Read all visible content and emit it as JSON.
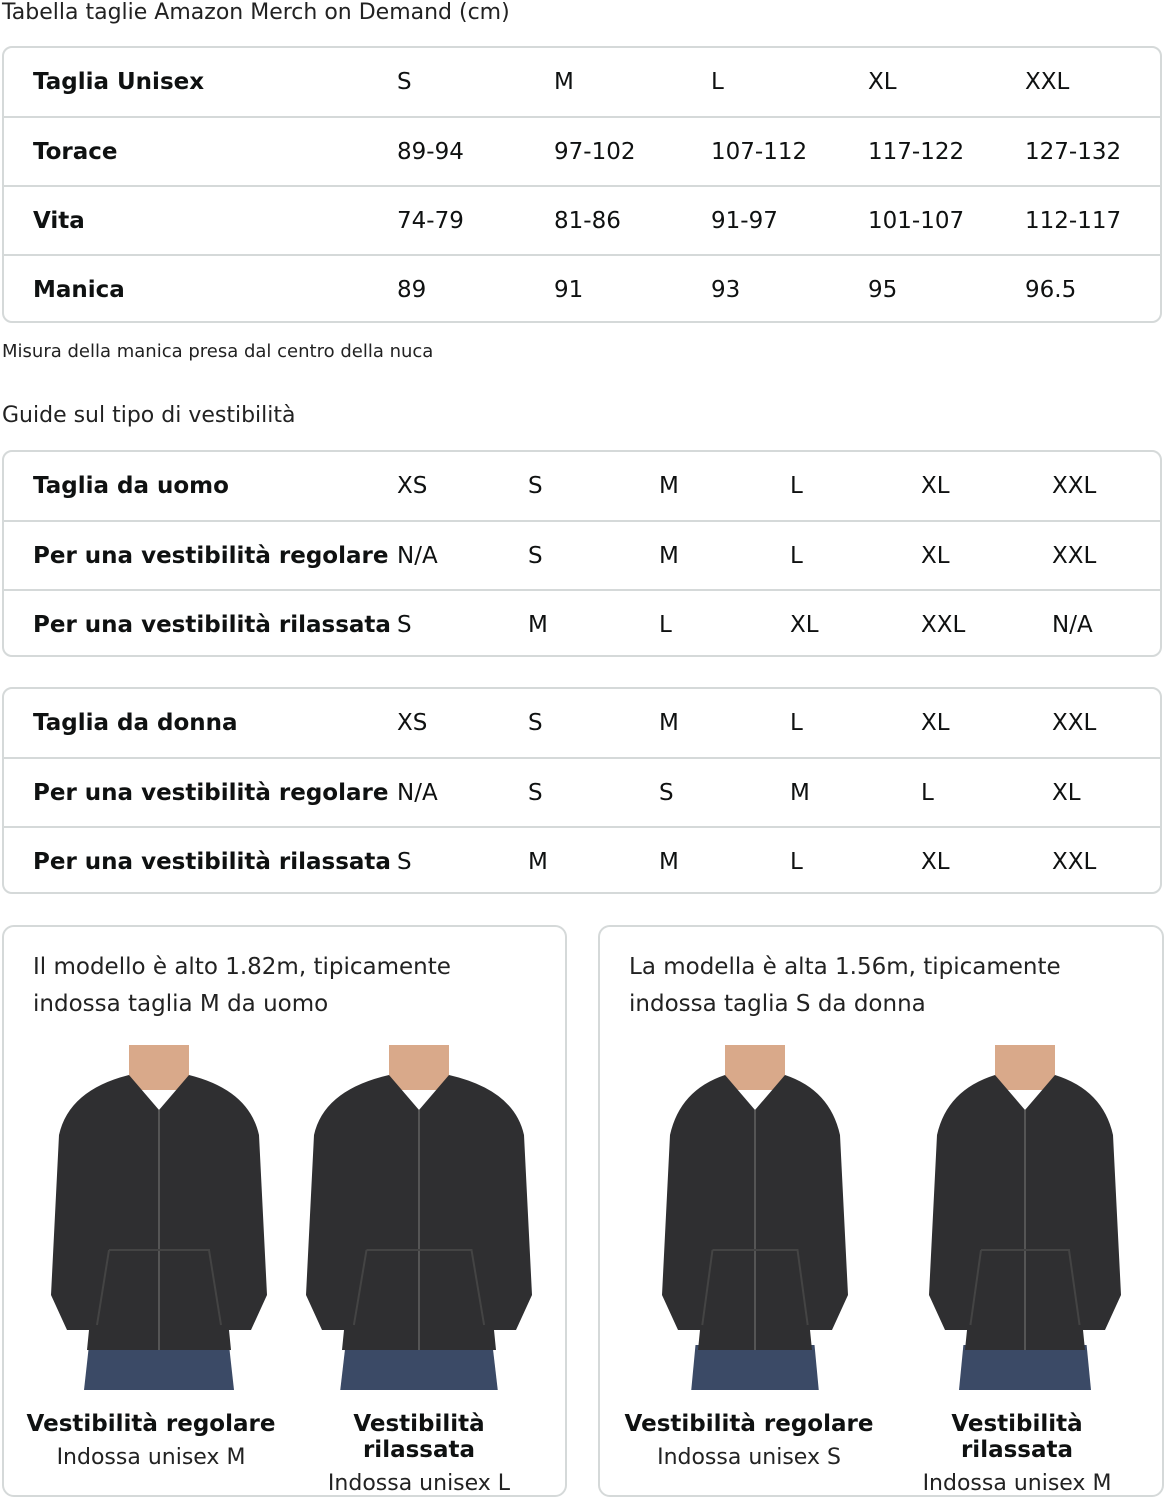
{
  "title": "Tabella taglie Amazon Merch on Demand (cm)",
  "unisex_table": {
    "rows": [
      {
        "label": "Taglia Unisex",
        "values": [
          "S",
          "M",
          "L",
          "XL",
          "XXL"
        ]
      },
      {
        "label": "Torace",
        "values": [
          "89-94",
          "97-102",
          "107-112",
          "117-122",
          "127-132"
        ]
      },
      {
        "label": "Vita",
        "values": [
          "74-79",
          "81-86",
          "91-97",
          "101-107",
          "112-117"
        ]
      },
      {
        "label": "Manica",
        "values": [
          "89",
          "91",
          "93",
          "95",
          "96.5"
        ]
      }
    ]
  },
  "footnote": "Misura della manica presa dal centro della nuca",
  "fit_guide_title": "Guide sul tipo di vestibilità",
  "men_table": {
    "rows": [
      {
        "label": "Taglia da uomo",
        "values": [
          "XS",
          "S",
          "M",
          "L",
          "XL",
          "XXL"
        ]
      },
      {
        "label": "Per una vestibilità regolare",
        "values": [
          "N/A",
          "S",
          "M",
          "L",
          "XL",
          "XXL"
        ]
      },
      {
        "label": "Per una vestibilità rilassata",
        "values": [
          "S",
          "M",
          "L",
          "XL",
          "XXL",
          "N/A"
        ]
      }
    ]
  },
  "women_table": {
    "rows": [
      {
        "label": "Taglia da donna",
        "values": [
          "XS",
          "S",
          "M",
          "L",
          "XL",
          "XXL"
        ]
      },
      {
        "label": "Per una vestibilità regolare",
        "values": [
          "N/A",
          "S",
          "S",
          "M",
          "L",
          "XL"
        ]
      },
      {
        "label": "Per una vestibilità rilassata",
        "values": [
          "S",
          "M",
          "M",
          "L",
          "XL",
          "XXL"
        ]
      }
    ]
  },
  "cards": [
    {
      "text": "Il modello è alto 1.82m, tipicamente indossa taglia M da uomo",
      "figures": [
        {
          "title": "Vestibilità regolare",
          "sub": "Indossa unisex M"
        },
        {
          "title": "Vestibilità rilassata",
          "sub": "Indossa unisex L"
        }
      ]
    },
    {
      "text": "La modella è alta 1.56m, tipicamente indossa taglia S da donna",
      "figures": [
        {
          "title": "Vestibilità regolare",
          "sub": "Indossa unisex S"
        },
        {
          "title": "Vestibilità rilassata",
          "sub": "Indossa unisex M"
        }
      ]
    }
  ],
  "colors": {
    "border": "#d5d9d9",
    "hoodie": "#2f2f31",
    "jeans": "#3b4a66",
    "skin": "#d9a98a"
  }
}
